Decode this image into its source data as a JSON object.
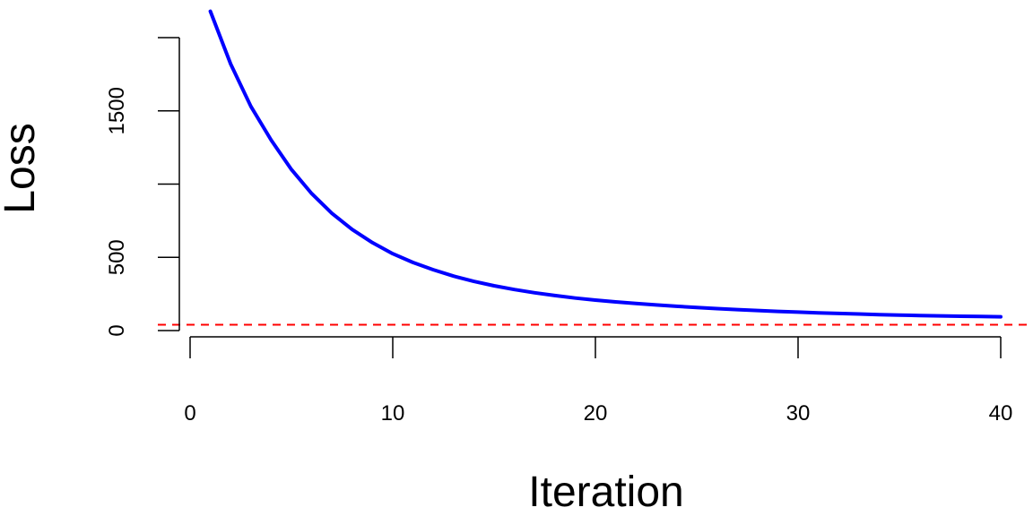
{
  "chart_data": {
    "type": "line",
    "title": "",
    "xlabel": "Iteration",
    "ylabel": "Loss",
    "xlim": [
      0,
      40
    ],
    "ylim": [
      0,
      2000
    ],
    "x_ticks": [
      0,
      10,
      20,
      30,
      40
    ],
    "x_tick_labels": [
      "0",
      "10",
      "20",
      "30",
      "40"
    ],
    "y_ticks": [
      0,
      500,
      1000,
      1500,
      2000
    ],
    "y_tick_labels": [
      "0",
      "500",
      "",
      "1500",
      ""
    ],
    "grid": false,
    "series": [
      {
        "color": "#0000ff",
        "style": "solid",
        "x": [
          1,
          2,
          3,
          4,
          5,
          6,
          7,
          8,
          9,
          10,
          11,
          12,
          13,
          14,
          15,
          16,
          17,
          18,
          19,
          20,
          21,
          22,
          23,
          24,
          25,
          26,
          27,
          28,
          29,
          30,
          31,
          32,
          33,
          34,
          35,
          36,
          37,
          38,
          39,
          40
        ],
        "y": [
          2180,
          1820,
          1530,
          1300,
          1100,
          935,
          800,
          690,
          600,
          525,
          465,
          415,
          372,
          336,
          306,
          280,
          258,
          239,
          222,
          208,
          196,
          185,
          175,
          166,
          158,
          150,
          143,
          137,
          131,
          126,
          121,
          117,
          113,
          109,
          106,
          103,
          100,
          98,
          96,
          94
        ]
      }
    ],
    "reference_line": {
      "y": 40,
      "color": "#ff0000",
      "style": "dashed"
    }
  }
}
